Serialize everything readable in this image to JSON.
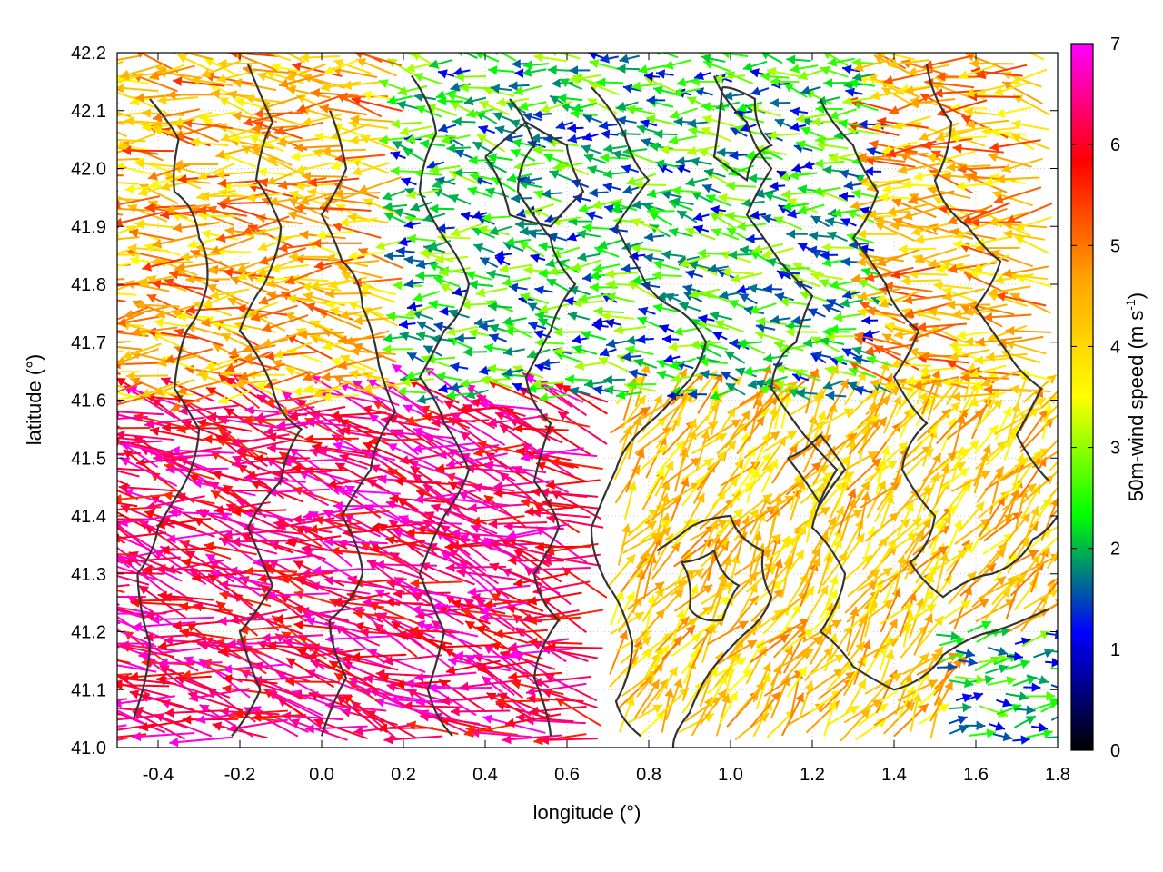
{
  "chart_data": {
    "type": "vector-field",
    "xlabel": "longitude (°)",
    "ylabel": "latitude (°)",
    "xlim": [
      -0.5,
      1.8
    ],
    "ylim": [
      41.0,
      42.2
    ],
    "x_ticks": [
      -0.4,
      -0.2,
      0.0,
      0.2,
      0.4,
      0.6,
      0.8,
      1.0,
      1.2,
      1.4,
      1.6,
      1.8
    ],
    "x_tick_labels": [
      "-0.4",
      "-0.2",
      "0.0",
      "0.2",
      "0.4",
      "0.6",
      "0.8",
      "1.0",
      "1.2",
      "1.4",
      "1.6",
      "1.8"
    ],
    "y_ticks": [
      41.0,
      41.1,
      41.2,
      41.3,
      41.4,
      41.5,
      41.6,
      41.7,
      41.8,
      41.9,
      42.0,
      42.1,
      42.2
    ],
    "y_tick_labels": [
      "41.0",
      "41.1",
      "41.2",
      "41.3",
      "41.4",
      "41.5",
      "41.6",
      "41.7",
      "41.8",
      "41.9",
      "42.0",
      "42.1",
      "42.2"
    ],
    "grid": "dotted",
    "colorbar": {
      "label_main": "50m-wind speed (m s",
      "label_sup": "-1",
      "label_end": ")",
      "range": [
        0,
        7
      ],
      "ticks": [
        0,
        1,
        2,
        3,
        4,
        5,
        6,
        7
      ],
      "tick_labels": [
        "0",
        "1",
        "2",
        "3",
        "4",
        "5",
        "6",
        "7"
      ],
      "colors": [
        "#000000",
        "#0000ff",
        "#00ff00",
        "#ffff00",
        "#ffa500",
        "#ff0000",
        "#ff00ff"
      ]
    },
    "contour_color": "#333333",
    "contour_levels": [
      {
        "points": [
          [
            -0.42,
            42.12
          ],
          [
            -0.35,
            42.05
          ],
          [
            -0.36,
            41.96
          ],
          [
            -0.3,
            41.88
          ],
          [
            -0.28,
            41.8
          ],
          [
            -0.33,
            41.72
          ],
          [
            -0.36,
            41.62
          ],
          [
            -0.3,
            41.55
          ],
          [
            -0.34,
            41.45
          ],
          [
            -0.4,
            41.38
          ],
          [
            -0.45,
            41.3
          ],
          [
            -0.42,
            41.18
          ],
          [
            -0.46,
            41.05
          ]
        ]
      },
      {
        "points": [
          [
            -0.18,
            42.18
          ],
          [
            -0.12,
            42.08
          ],
          [
            -0.16,
            41.98
          ],
          [
            -0.1,
            41.9
          ],
          [
            -0.14,
            41.8
          ],
          [
            -0.2,
            41.72
          ],
          [
            -0.12,
            41.62
          ],
          [
            -0.05,
            41.55
          ],
          [
            -0.1,
            41.46
          ],
          [
            -0.18,
            41.38
          ],
          [
            -0.12,
            41.28
          ],
          [
            -0.2,
            41.2
          ],
          [
            -0.15,
            41.1
          ],
          [
            -0.22,
            41.02
          ]
        ]
      },
      {
        "points": [
          [
            0.02,
            42.1
          ],
          [
            0.06,
            42.0
          ],
          [
            0.0,
            41.92
          ],
          [
            0.05,
            41.84
          ],
          [
            0.1,
            41.76
          ],
          [
            0.14,
            41.66
          ],
          [
            0.18,
            41.58
          ],
          [
            0.12,
            41.48
          ],
          [
            0.05,
            41.4
          ],
          [
            0.1,
            41.3
          ],
          [
            0.02,
            41.22
          ],
          [
            0.06,
            41.12
          ],
          [
            0.0,
            41.02
          ]
        ]
      },
      {
        "points": [
          [
            0.22,
            42.16
          ],
          [
            0.28,
            42.06
          ],
          [
            0.24,
            41.96
          ],
          [
            0.3,
            41.88
          ],
          [
            0.36,
            41.8
          ],
          [
            0.3,
            41.72
          ],
          [
            0.24,
            41.64
          ],
          [
            0.3,
            41.56
          ],
          [
            0.36,
            41.48
          ],
          [
            0.3,
            41.4
          ],
          [
            0.24,
            41.3
          ],
          [
            0.3,
            41.2
          ],
          [
            0.26,
            41.1
          ],
          [
            0.32,
            41.02
          ]
        ]
      },
      {
        "points": [
          [
            0.46,
            42.12
          ],
          [
            0.52,
            42.04
          ],
          [
            0.48,
            41.96
          ],
          [
            0.56,
            41.88
          ],
          [
            0.62,
            41.8
          ],
          [
            0.56,
            41.72
          ],
          [
            0.5,
            41.64
          ],
          [
            0.56,
            41.56
          ],
          [
            0.52,
            41.46
          ],
          [
            0.58,
            41.38
          ],
          [
            0.52,
            41.3
          ],
          [
            0.58,
            41.22
          ],
          [
            0.52,
            41.12
          ],
          [
            0.56,
            41.02
          ]
        ]
      },
      {
        "points": [
          [
            0.66,
            42.14
          ],
          [
            0.74,
            42.06
          ],
          [
            0.8,
            41.98
          ],
          [
            0.72,
            41.9
          ],
          [
            0.78,
            41.82
          ],
          [
            0.86,
            41.76
          ],
          [
            0.94,
            41.7
          ],
          [
            0.88,
            41.62
          ],
          [
            0.8,
            41.56
          ],
          [
            0.72,
            41.48
          ],
          [
            0.66,
            41.38
          ],
          [
            0.7,
            41.28
          ],
          [
            0.76,
            41.18
          ],
          [
            0.72,
            41.08
          ],
          [
            0.78,
            41.02
          ]
        ]
      },
      {
        "points": [
          [
            0.82,
            41.34
          ],
          [
            0.9,
            41.38
          ],
          [
            1.0,
            41.4
          ],
          [
            1.08,
            41.34
          ],
          [
            1.1,
            41.26
          ],
          [
            1.04,
            41.2
          ],
          [
            0.96,
            41.14
          ],
          [
            0.9,
            41.06
          ],
          [
            0.86,
            41.0
          ]
        ]
      },
      {
        "points": [
          [
            0.96,
            42.16
          ],
          [
            1.04,
            42.08
          ],
          [
            1.1,
            42.0
          ],
          [
            1.04,
            41.92
          ],
          [
            1.12,
            41.84
          ],
          [
            1.2,
            41.78
          ],
          [
            1.16,
            41.7
          ],
          [
            1.1,
            41.62
          ],
          [
            1.18,
            41.54
          ],
          [
            1.26,
            41.48
          ],
          [
            1.2,
            41.38
          ],
          [
            1.28,
            41.3
          ],
          [
            1.22,
            41.2
          ],
          [
            1.3,
            41.14
          ],
          [
            1.4,
            41.1
          ],
          [
            1.52,
            41.16
          ],
          [
            1.64,
            41.2
          ],
          [
            1.78,
            41.24
          ]
        ]
      },
      {
        "points": [
          [
            1.22,
            42.12
          ],
          [
            1.3,
            42.04
          ],
          [
            1.36,
            41.96
          ],
          [
            1.3,
            41.88
          ],
          [
            1.38,
            41.8
          ],
          [
            1.46,
            41.72
          ],
          [
            1.4,
            41.64
          ],
          [
            1.48,
            41.56
          ],
          [
            1.42,
            41.48
          ],
          [
            1.5,
            41.4
          ],
          [
            1.44,
            41.32
          ],
          [
            1.52,
            41.26
          ],
          [
            1.64,
            41.3
          ],
          [
            1.74,
            41.36
          ],
          [
            1.8,
            41.4
          ]
        ]
      },
      {
        "points": [
          [
            1.48,
            42.18
          ],
          [
            1.54,
            42.08
          ],
          [
            1.5,
            41.98
          ],
          [
            1.58,
            41.9
          ],
          [
            1.66,
            41.84
          ],
          [
            1.6,
            41.76
          ],
          [
            1.68,
            41.68
          ],
          [
            1.76,
            41.62
          ],
          [
            1.7,
            41.54
          ],
          [
            1.78,
            41.46
          ]
        ]
      },
      {
        "points": [
          [
            0.4,
            42.02
          ],
          [
            0.5,
            42.08
          ],
          [
            0.6,
            42.04
          ],
          [
            0.64,
            41.96
          ],
          [
            0.56,
            41.9
          ],
          [
            0.46,
            41.92
          ],
          [
            0.4,
            42.02
          ]
        ]
      },
      {
        "points": [
          [
            0.98,
            42.14
          ],
          [
            1.06,
            42.12
          ],
          [
            1.1,
            42.04
          ],
          [
            1.04,
            41.98
          ],
          [
            0.96,
            42.02
          ],
          [
            0.98,
            42.14
          ]
        ]
      },
      {
        "points": [
          [
            0.88,
            41.32
          ],
          [
            0.96,
            41.34
          ],
          [
            1.02,
            41.28
          ],
          [
            0.98,
            41.22
          ],
          [
            0.9,
            41.24
          ],
          [
            0.88,
            41.32
          ]
        ]
      },
      {
        "points": [
          [
            1.14,
            41.5
          ],
          [
            1.22,
            41.54
          ],
          [
            1.28,
            41.48
          ],
          [
            1.22,
            41.42
          ],
          [
            1.14,
            41.5
          ]
        ]
      }
    ],
    "wind_vectors": {
      "grid_x_start": -0.48,
      "grid_x_end": 1.78,
      "grid_x_step": 0.045,
      "grid_y_start": 41.02,
      "grid_y_end": 42.19,
      "grid_y_step": 0.022,
      "regions": [
        {
          "name": "north-west orange/red westward flow",
          "lon": [
            -0.5,
            0.2
          ],
          "lat": [
            41.6,
            42.2
          ],
          "speed": [
            3.5,
            5.5
          ],
          "u": -1.0,
          "v": 0.05
        },
        {
          "name": "central-north weak green flow",
          "lon": [
            0.2,
            1.4
          ],
          "lat": [
            41.6,
            42.2
          ],
          "speed": [
            1.0,
            3.2
          ],
          "u": -1.0,
          "v": 0.1
        },
        {
          "name": "south-west strong magenta flow",
          "lon": [
            -0.5,
            0.7
          ],
          "lat": [
            41.0,
            41.6
          ],
          "speed": [
            5.5,
            7.0
          ],
          "u": -1.0,
          "v": 0.25
        },
        {
          "name": "east orange north-east flow",
          "lon": [
            0.7,
            1.8
          ],
          "lat": [
            41.0,
            41.6
          ],
          "speed": [
            3.5,
            5.0
          ],
          "u": 0.6,
          "v": 0.8
        },
        {
          "name": "south-east coast green eastward flow",
          "lon": [
            1.5,
            1.8
          ],
          "lat": [
            41.0,
            41.2
          ],
          "speed": [
            1.0,
            3.0
          ],
          "u": 1.0,
          "v": 0.1
        }
      ]
    }
  }
}
